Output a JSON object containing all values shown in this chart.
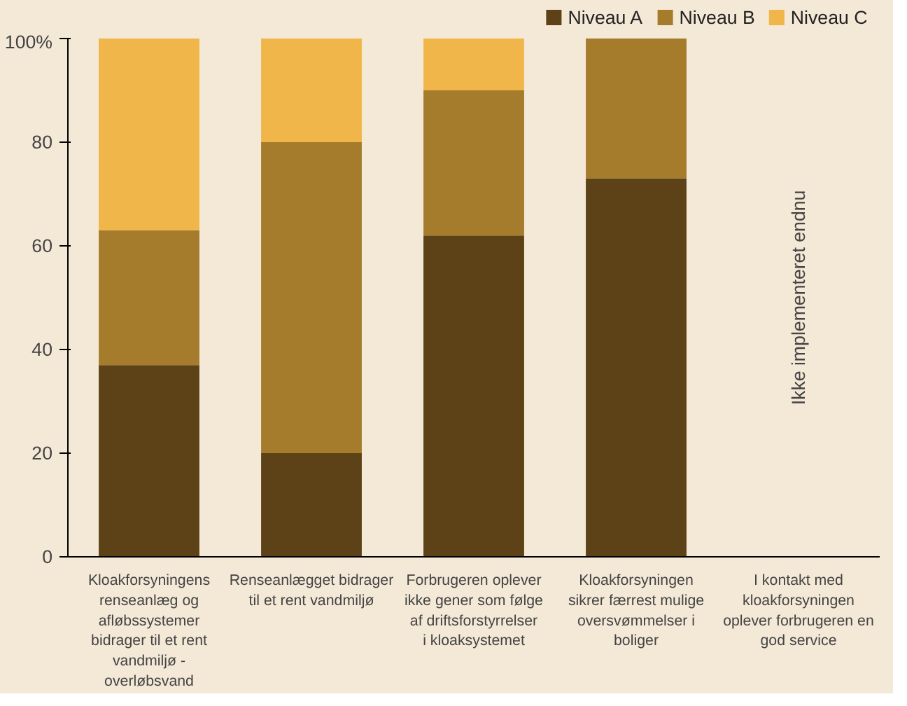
{
  "chart_data": {
    "type": "bar",
    "stacked": true,
    "categories": [
      "Kloakforsyningens renseanlæg og afløbssystemer bidrager til et rent vandmiljø - overløbsvand",
      "Renseanlægget bidrager til et rent vandmiljø",
      "Forbrugeren oplever ikke gener som følge af driftsforstyrrelser i kloaksystemet",
      "Kloakforsyningen sikrer færrest mulige oversvømmelser i boliger",
      "I kontakt med kloakforsyningen oplever forbrugeren en god service"
    ],
    "series": [
      {
        "name": "Niveau A",
        "color": "#5c4216",
        "values": [
          37,
          20,
          62,
          73,
          null
        ]
      },
      {
        "name": "Niveau B",
        "color": "#a47c2c",
        "values": [
          26,
          60,
          28,
          27,
          null
        ]
      },
      {
        "name": "Niveau C",
        "color": "#f0b64a",
        "values": [
          37,
          20,
          10,
          0,
          null
        ]
      }
    ],
    "ylim": [
      0,
      100
    ],
    "yticks": [
      0,
      20,
      40,
      60,
      80,
      {
        "value": 100,
        "label": "100%"
      }
    ],
    "annotations": [
      "Ikke implementeret endnu"
    ],
    "legend": "top right"
  }
}
